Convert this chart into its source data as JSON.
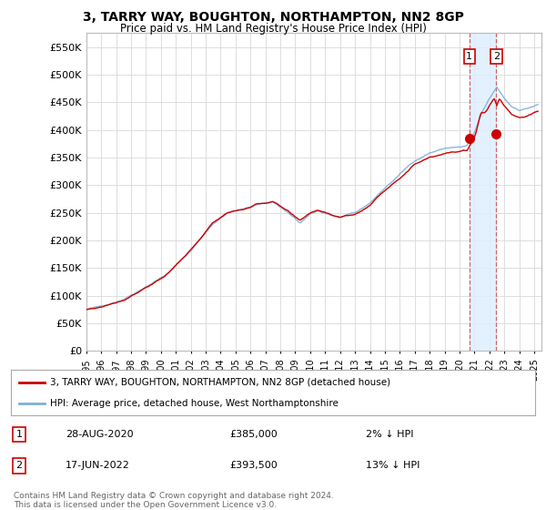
{
  "title": "3, TARRY WAY, BOUGHTON, NORTHAMPTON, NN2 8GP",
  "subtitle": "Price paid vs. HM Land Registry's House Price Index (HPI)",
  "legend_line1": "3, TARRY WAY, BOUGHTON, NORTHAMPTON, NN2 8GP (detached house)",
  "legend_line2": "HPI: Average price, detached house, West Northamptonshire",
  "footnote": "Contains HM Land Registry data © Crown copyright and database right 2024.\nThis data is licensed under the Open Government Licence v3.0.",
  "annotation1": {
    "num": "1",
    "date": "28-AUG-2020",
    "price": "£385,000",
    "pct": "2% ↓ HPI"
  },
  "annotation2": {
    "num": "2",
    "date": "17-JUN-2022",
    "price": "£393,500",
    "pct": "13% ↓ HPI"
  },
  "hpi_color": "#7bb0d8",
  "price_color": "#cc0000",
  "background_color": "#ffffff",
  "grid_color": "#dddddd",
  "highlight_bg": "#ddeeff",
  "ylim": [
    0,
    575000
  ],
  "yticks": [
    0,
    50000,
    100000,
    150000,
    200000,
    250000,
    300000,
    350000,
    400000,
    450000,
    500000,
    550000
  ],
  "xlim_start": 1995.0,
  "xlim_end": 2025.5,
  "sale1_x": 2020.66,
  "sale1_y": 385000,
  "sale2_x": 2022.46,
  "sale2_y": 393500,
  "title_fontsize": 10,
  "subtitle_fontsize": 8.5,
  "tick_fontsize": 8,
  "xtick_fontsize": 7
}
